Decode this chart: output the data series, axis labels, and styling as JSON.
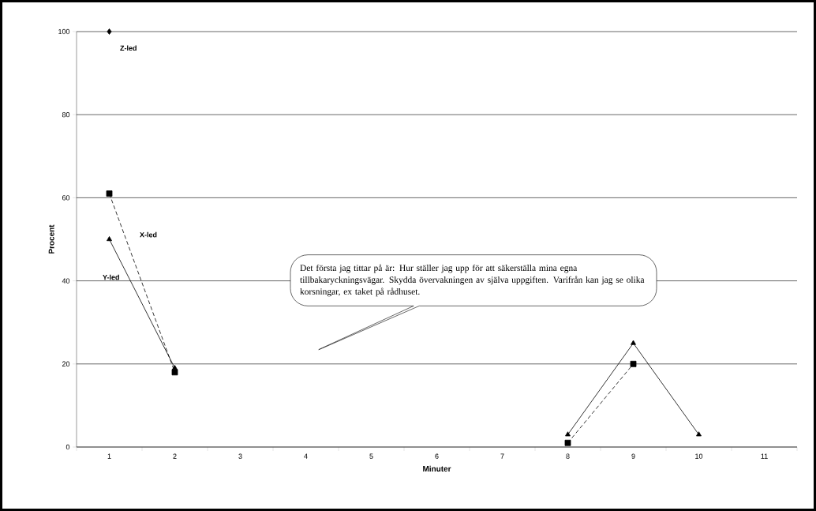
{
  "chart_data": {
    "type": "line",
    "xlabel": "Minuter",
    "ylabel": "Procent",
    "categories": [
      "1",
      "2",
      "3",
      "4",
      "5",
      "6",
      "7",
      "8",
      "9",
      "10",
      "11"
    ],
    "series": [
      {
        "name": "X-led",
        "color": "#000000",
        "marker": "square",
        "line_style": "dashed",
        "values": [
          61,
          18,
          null,
          null,
          null,
          null,
          null,
          1,
          20,
          null,
          null
        ]
      },
      {
        "name": "Y-led",
        "color": "#000000",
        "marker": "triangle",
        "line_style": "solid",
        "values": [
          50,
          19,
          null,
          null,
          null,
          null,
          null,
          3,
          25,
          3,
          null
        ]
      },
      {
        "name": "Z-led",
        "color": "#000000",
        "marker": "diamond",
        "line_style": "solid",
        "values": [
          100,
          null,
          null,
          null,
          null,
          null,
          null,
          null,
          null,
          null,
          null
        ]
      }
    ],
    "ylim": [
      0,
      100
    ],
    "yticks": [
      0,
      20,
      40,
      60,
      80,
      100
    ],
    "grid": "y",
    "annotations": [
      "Det första jag tittar på är: Hur ställer jag upp för att säkerställa mina egna tillbakaryckningsvägar. Skydda övervakningen av själva uppgiften. Varifrån kan jag se olika korsningar, ex taket på rådhuset."
    ]
  }
}
